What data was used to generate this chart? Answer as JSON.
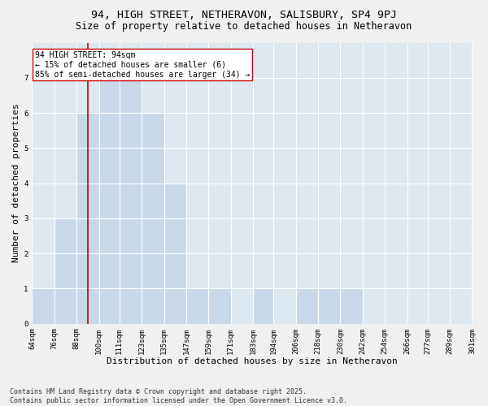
{
  "title1": "94, HIGH STREET, NETHERAVON, SALISBURY, SP4 9PJ",
  "title2": "Size of property relative to detached houses in Netheravon",
  "xlabel": "Distribution of detached houses by size in Netheravon",
  "ylabel": "Number of detached properties",
  "bin_edges": [
    64,
    76,
    88,
    100,
    111,
    123,
    135,
    147,
    159,
    171,
    183,
    194,
    206,
    218,
    230,
    242,
    254,
    266,
    277,
    289,
    301
  ],
  "bin_labels": [
    "64sqm",
    "76sqm",
    "88sqm",
    "100sqm",
    "111sqm",
    "123sqm",
    "135sqm",
    "147sqm",
    "159sqm",
    "171sqm",
    "183sqm",
    "194sqm",
    "206sqm",
    "218sqm",
    "230sqm",
    "242sqm",
    "254sqm",
    "266sqm",
    "277sqm",
    "289sqm",
    "301sqm"
  ],
  "counts": [
    1,
    3,
    6,
    7,
    7,
    6,
    4,
    1,
    1,
    0,
    1,
    0,
    1,
    1,
    1,
    0,
    0,
    0,
    0,
    0
  ],
  "bar_color": "#c8d8e8",
  "bar_edge_color": "#6699bb",
  "property_size": 94,
  "red_line_color": "#cc0000",
  "annotation_text": "94 HIGH STREET: 94sqm\n← 15% of detached houses are smaller (6)\n85% of semi-detached houses are larger (34) →",
  "annotation_box_color": "#ffffff",
  "annotation_box_edge_color": "#cc0000",
  "ylim": [
    0,
    8
  ],
  "yticks": [
    0,
    1,
    2,
    3,
    4,
    5,
    6,
    7
  ],
  "background_color": "#dde8f0",
  "grid_color": "#ffffff",
  "footer": "Contains HM Land Registry data © Crown copyright and database right 2025.\nContains public sector information licensed under the Open Government Licence v3.0.",
  "title1_fontsize": 9.5,
  "title2_fontsize": 8.5,
  "xlabel_fontsize": 8,
  "ylabel_fontsize": 8,
  "annotation_fontsize": 7,
  "footer_fontsize": 6,
  "tick_fontsize": 6.5
}
